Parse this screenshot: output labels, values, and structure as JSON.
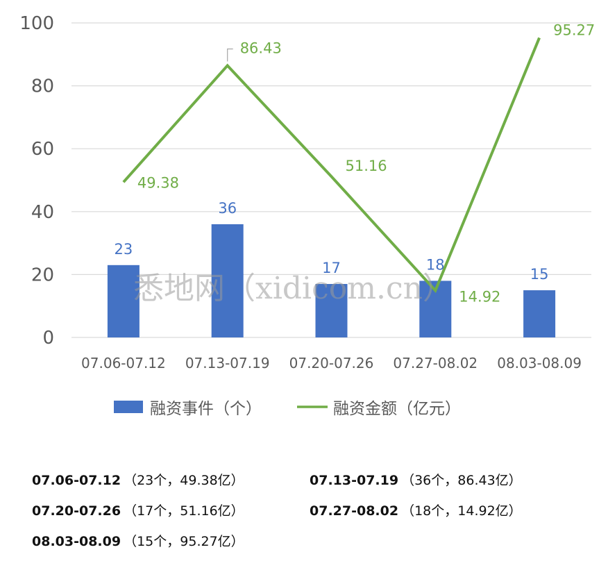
{
  "chart_data": {
    "type": "bar+line",
    "categories": [
      "07.06-07.12",
      "07.13-07.19",
      "07.20-07.26",
      "07.27-08.02",
      "08.03-08.09"
    ],
    "series": [
      {
        "name": "融资事件（个）",
        "type": "bar",
        "color": "#4472c4",
        "values": [
          23,
          36,
          17,
          18,
          15
        ]
      },
      {
        "name": "融资金额（亿元）",
        "type": "line",
        "color": "#70ad47",
        "values": [
          49.38,
          86.43,
          51.16,
          14.92,
          95.27
        ]
      }
    ],
    "ylim": [
      0,
      100
    ],
    "yticks": [
      "0",
      "20",
      "40",
      "60",
      "80",
      "100"
    ],
    "bar_labels": [
      "23",
      "36",
      "17",
      "18",
      "15"
    ],
    "line_labels": [
      "49.38",
      "86.43",
      "51.16",
      "14.92",
      "95.27"
    ],
    "grid": true,
    "legend": "bottom",
    "gridline_color": "#d9d9d9"
  },
  "watermark": "悉地网（xidicom.cn）",
  "summary": [
    {
      "period": "07.06-07.12",
      "detail": "（23个，49.38亿）"
    },
    {
      "period": "07.13-07.19",
      "detail": "（36个，86.43亿）"
    },
    {
      "period": "07.20-07.26",
      "detail": "（17个，51.16亿）"
    },
    {
      "period": "07.27-08.02",
      "detail": "（18个，14.92亿）"
    },
    {
      "period": "08.03-08.09",
      "detail": "（15个，95.27亿）"
    }
  ]
}
